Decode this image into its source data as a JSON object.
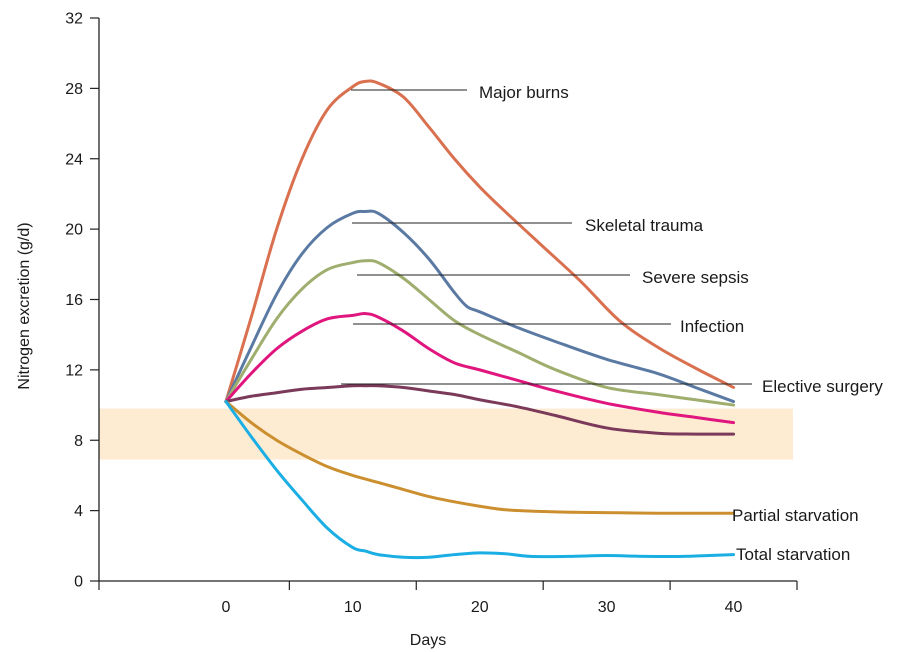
{
  "chart_data": {
    "type": "line",
    "title": "",
    "xlabel": "Days",
    "ylabel": "Nitrogen excretion (g/d)",
    "xlim": [
      -10,
      45
    ],
    "ylim": [
      0,
      32
    ],
    "x_ticks": [
      0,
      10,
      20,
      30,
      40
    ],
    "y_ticks": [
      0,
      4,
      8,
      12,
      16,
      20,
      24,
      28,
      32
    ],
    "grid": false,
    "normal_range_band": {
      "y_from": 6.9,
      "y_to": 9.8,
      "color": "#fdebd2"
    },
    "series": [
      {
        "name": "Major burns",
        "color": "#d9704f",
        "x": [
          0,
          2,
          4,
          6,
          8,
          10,
          11,
          12,
          14,
          16,
          18,
          20,
          22,
          25,
          28,
          31,
          34,
          37,
          40
        ],
        "y": [
          10.2,
          15,
          20,
          24,
          26.8,
          28.1,
          28.4,
          28.3,
          27.5,
          25.8,
          24,
          22.4,
          21,
          19,
          17,
          14.8,
          13.3,
          12.1,
          11.0
        ]
      },
      {
        "name": "Skeletal trauma",
        "color": "#5b7aa3",
        "x": [
          0,
          2,
          4,
          6,
          8,
          10,
          11,
          12,
          14,
          16,
          18,
          19,
          20,
          23,
          26,
          30,
          34,
          37,
          40
        ],
        "y": [
          10.2,
          13.3,
          16.3,
          18.6,
          20.1,
          20.9,
          21.0,
          20.9,
          19.8,
          18.3,
          16.4,
          15.6,
          15.3,
          14.4,
          13.6,
          12.6,
          11.8,
          11.0,
          10.2
        ]
      },
      {
        "name": "Severe sepsis",
        "color": "#9fae6e",
        "x": [
          0,
          2,
          4,
          6,
          8,
          10,
          11,
          12,
          14,
          16,
          18,
          20,
          23,
          26,
          30,
          34,
          37,
          40
        ],
        "y": [
          10.2,
          12.6,
          14.9,
          16.6,
          17.7,
          18.1,
          18.2,
          18.1,
          17.2,
          16.0,
          14.8,
          14.0,
          13.0,
          12.0,
          11.0,
          10.6,
          10.3,
          10.0
        ]
      },
      {
        "name": "Infection",
        "color": "#e0167e",
        "x": [
          0,
          2,
          4,
          6,
          8,
          10,
          11,
          12,
          14,
          16,
          18,
          20,
          23,
          26,
          30,
          34,
          37,
          40
        ],
        "y": [
          10.2,
          11.8,
          13.2,
          14.2,
          14.9,
          15.1,
          15.2,
          15.0,
          14.2,
          13.2,
          12.4,
          12.0,
          11.4,
          10.8,
          10.1,
          9.6,
          9.3,
          9.0
        ]
      },
      {
        "name": "Elective surgery",
        "color": "#7b3a5a",
        "x": [
          0,
          2,
          4,
          6,
          8,
          10,
          11,
          12,
          14,
          16,
          18,
          20,
          23,
          26,
          30,
          34,
          37,
          40
        ],
        "y": [
          10.2,
          10.5,
          10.7,
          10.9,
          11.0,
          11.1,
          11.1,
          11.1,
          11.0,
          10.8,
          10.6,
          10.3,
          9.9,
          9.4,
          8.7,
          8.4,
          8.35,
          8.35
        ]
      },
      {
        "name": "Partial starvation",
        "color": "#cc8f2f",
        "x": [
          0,
          2,
          4,
          6,
          8,
          10,
          12,
          14,
          16,
          18,
          20,
          22,
          25,
          28,
          31,
          34,
          37,
          40
        ],
        "y": [
          10.2,
          9.0,
          8.0,
          7.2,
          6.5,
          6.0,
          5.6,
          5.2,
          4.8,
          4.5,
          4.25,
          4.05,
          3.95,
          3.9,
          3.88,
          3.85,
          3.85,
          3.85
        ]
      },
      {
        "name": "Total starvation",
        "color": "#1aaee4",
        "x": [
          0,
          2,
          4,
          6,
          8,
          10,
          11,
          12,
          14,
          16,
          18,
          20,
          22,
          24,
          27,
          30,
          33,
          36,
          40
        ],
        "y": [
          10.2,
          8.2,
          6.3,
          4.6,
          3.0,
          1.9,
          1.7,
          1.5,
          1.35,
          1.35,
          1.5,
          1.6,
          1.55,
          1.4,
          1.4,
          1.45,
          1.4,
          1.4,
          1.5
        ]
      }
    ],
    "annotations": [
      {
        "text": "Major burns",
        "series": "Major burns"
      },
      {
        "text": "Skeletal trauma",
        "series": "Skeletal trauma"
      },
      {
        "text": "Severe sepsis",
        "series": "Severe sepsis"
      },
      {
        "text": "Infection",
        "series": "Infection"
      },
      {
        "text": "Elective surgery",
        "series": "Elective surgery"
      },
      {
        "text": "Partial starvation",
        "series": "Partial starvation"
      },
      {
        "text": "Total starvation",
        "series": "Total starvation"
      }
    ]
  }
}
